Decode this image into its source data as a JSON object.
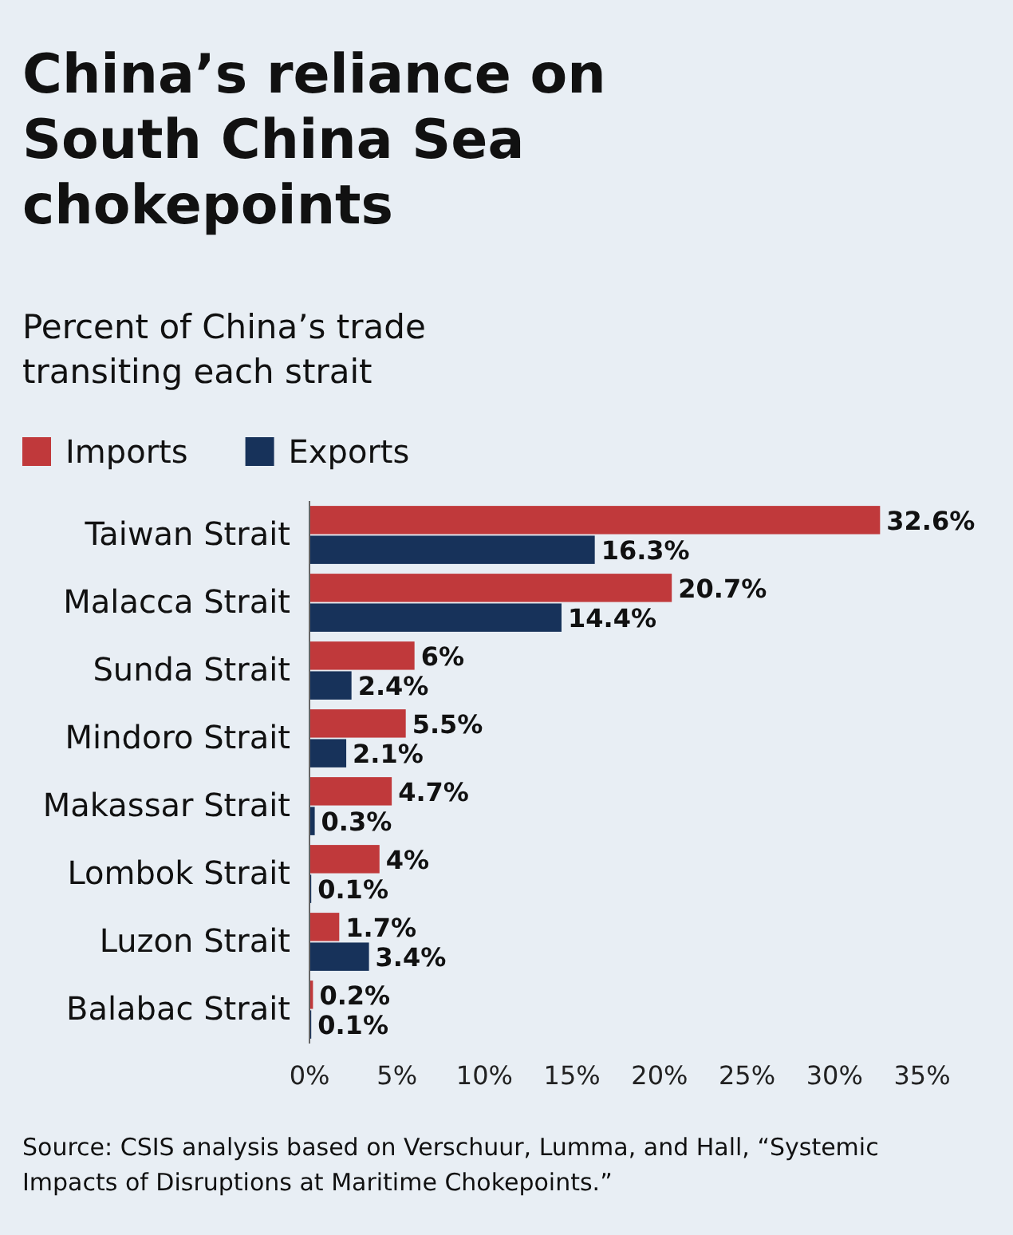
{
  "chart_data": {
    "type": "bar",
    "orientation": "horizontal",
    "title": "China’s reliance on South China Sea chokepoints",
    "subtitle": "Percent of China’s trade transiting each strait",
    "categories": [
      "Taiwan Strait",
      "Malacca Strait",
      "Sunda Strait",
      "Mindoro Strait",
      "Makassar Strait",
      "Lombok Strait",
      "Luzon Strait",
      "Balabac Strait"
    ],
    "series": [
      {
        "name": "Imports",
        "color": "#c0393b",
        "values": [
          32.6,
          20.7,
          6,
          5.5,
          4.7,
          4,
          1.7,
          0.2
        ],
        "value_labels": [
          "32.6%",
          "20.7%",
          "6%",
          "5.5%",
          "4.7%",
          "4%",
          "1.7%",
          "0.2%"
        ]
      },
      {
        "name": "Exports",
        "color": "#17325a",
        "values": [
          16.3,
          14.4,
          2.4,
          2.1,
          0.3,
          0.1,
          3.4,
          0.1
        ],
        "value_labels": [
          "16.3%",
          "14.4%",
          "2.4%",
          "2.1%",
          "0.3%",
          "0.1%",
          "3.4%",
          "0.1%"
        ]
      }
    ],
    "xlim": [
      0,
      35
    ],
    "xticks": [
      {
        "value": 0,
        "label": "0%"
      },
      {
        "value": 5,
        "label": "5%"
      },
      {
        "value": 10,
        "label": "10%"
      },
      {
        "value": 15,
        "label": "15%"
      },
      {
        "value": 20,
        "label": "20%"
      },
      {
        "value": 25,
        "label": "25%"
      },
      {
        "value": 30,
        "label": "30%"
      },
      {
        "value": 35,
        "label": "35%"
      }
    ],
    "grid": false,
    "legend": "top left",
    "annotations": [
      "Source: CSIS analysis based on Verschuur, Lumma, and Hall, “Systemic Impacts of Disruptions at Maritime Chokepoints.”"
    ]
  }
}
